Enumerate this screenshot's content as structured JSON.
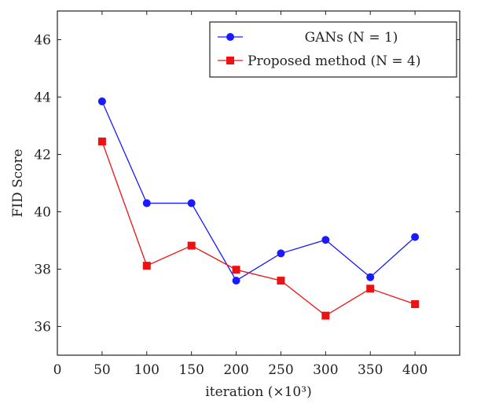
{
  "chart_data": {
    "type": "line",
    "xlabel": "iteration (×10³)",
    "ylabel": "FID Score",
    "xlim": [
      0,
      450
    ],
    "ylim": [
      35,
      47
    ],
    "xticks": [
      0,
      50,
      100,
      150,
      200,
      250,
      300,
      350,
      400
    ],
    "yticks": [
      36,
      38,
      40,
      42,
      44,
      46
    ],
    "grid": false,
    "legend_position": "top-right",
    "series": [
      {
        "name": "GANs (N = 1)",
        "color": "#1a1aff",
        "marker": "circle",
        "x": [
          50,
          100,
          150,
          200,
          250,
          300,
          350,
          400
        ],
        "values": [
          43.85,
          40.3,
          40.3,
          37.6,
          38.55,
          39.02,
          37.72,
          39.12
        ]
      },
      {
        "name": "Proposed method (N = 4)",
        "color": "#ee1111",
        "marker": "square",
        "x": [
          50,
          100,
          150,
          200,
          250,
          300,
          350,
          400
        ],
        "values": [
          42.45,
          38.12,
          38.82,
          37.98,
          37.6,
          36.38,
          37.32,
          36.78
        ]
      }
    ]
  }
}
